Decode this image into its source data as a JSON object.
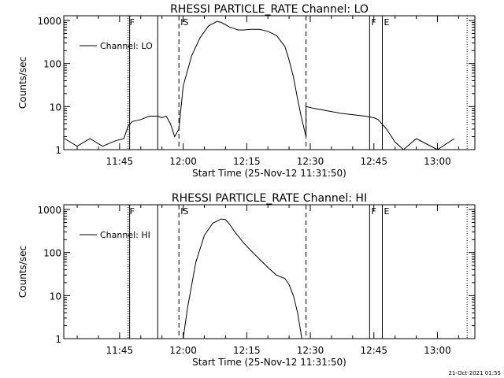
{
  "chart_data": [
    {
      "type": "line",
      "title": "RHESSI PARTICLE_RATE Channel: LO",
      "xlabel": "Start Time (25-Nov-12 11:31:50)",
      "ylabel": "Counts/sec",
      "yscale": "log",
      "ylim": [
        1,
        1000
      ],
      "y_ticks": [
        1,
        10,
        100,
        1000
      ],
      "y_tick_labels": [
        "1",
        "10",
        "100",
        "1000"
      ],
      "x_ticks": [
        "11:45",
        "12:00",
        "12:15",
        "12:30",
        "12:45",
        "13:00"
      ],
      "legend": "Channel: LO",
      "legend_position": "top-left",
      "markers": [
        {
          "label": "F",
          "time": "11:47",
          "style": "dotted"
        },
        {
          "label": "",
          "time": "11:47",
          "style": "solid"
        },
        {
          "label": "",
          "time": "11:54",
          "style": "solid"
        },
        {
          "label": "IS",
          "time": "11:59",
          "style": "dashed"
        },
        {
          "label": "",
          "time": "12:29",
          "style": "dashed"
        },
        {
          "label": "F",
          "time": "12:44",
          "style": "solid"
        },
        {
          "label": "E",
          "time": "12:47",
          "style": "solid"
        },
        {
          "label": "",
          "time": "13:07",
          "style": "dotted"
        }
      ],
      "series": [
        {
          "name": "Channel: LO",
          "x": [
            "11:32",
            "11:35",
            "11:38",
            "11:41",
            "11:44",
            "11:46",
            "11:47",
            "11:48",
            "11:50",
            "11:52",
            "11:54",
            "11:55",
            "11:56",
            "11:57",
            "11:58",
            "11:59",
            "12:00",
            "12:02",
            "12:04",
            "12:06",
            "12:08",
            "12:09",
            "12:10",
            "12:11",
            "12:12",
            "12:13",
            "12:14",
            "12:16",
            "12:18",
            "12:20",
            "12:22",
            "12:24",
            "12:25",
            "12:26",
            "12:27",
            "12:28",
            "12:29",
            "12:29",
            "12:31",
            "12:34",
            "12:37",
            "12:40",
            "12:43",
            "12:45",
            "12:46",
            "12:48",
            "12:50",
            "12:52",
            "12:55",
            "13:00",
            "13:04"
          ],
          "y": [
            1.8,
            1.2,
            1.8,
            1.2,
            1.6,
            1.8,
            3.5,
            4.5,
            5,
            6,
            6,
            5.5,
            6,
            4,
            2,
            3,
            30,
            150,
            400,
            750,
            950,
            900,
            800,
            700,
            650,
            600,
            600,
            620,
            620,
            560,
            450,
            250,
            120,
            50,
            15,
            5,
            2,
            10,
            9,
            8,
            7,
            6.5,
            6,
            5.5,
            5,
            3,
            1.5,
            1,
            1.8,
            1,
            1.8
          ]
        }
      ]
    },
    {
      "type": "line",
      "title": "RHESSI PARTICLE_RATE Channel: HI",
      "xlabel": "Start Time (25-Nov-12 11:31:50)",
      "ylabel": "Counts/sec",
      "yscale": "log",
      "ylim": [
        1,
        1000
      ],
      "y_ticks": [
        1,
        10,
        100,
        1000
      ],
      "y_tick_labels": [
        "1",
        "10",
        "100",
        "1000"
      ],
      "x_ticks": [
        "11:45",
        "12:00",
        "12:15",
        "12:30",
        "12:45",
        "13:00"
      ],
      "legend": "Channel: HI",
      "legend_position": "top-left",
      "markers": [
        {
          "label": "F",
          "time": "11:47",
          "style": "dotted"
        },
        {
          "label": "",
          "time": "11:47",
          "style": "solid"
        },
        {
          "label": "",
          "time": "11:54",
          "style": "solid"
        },
        {
          "label": "IS",
          "time": "11:59",
          "style": "dashed"
        },
        {
          "label": "",
          "time": "12:29",
          "style": "dashed"
        },
        {
          "label": "F",
          "time": "12:44",
          "style": "solid"
        },
        {
          "label": "E",
          "time": "12:47",
          "style": "solid"
        },
        {
          "label": "",
          "time": "13:07",
          "style": "dotted"
        }
      ],
      "series": [
        {
          "name": "Channel: HI",
          "x": [
            "12:00",
            "12:01",
            "12:03",
            "12:05",
            "12:07",
            "12:09",
            "12:10",
            "12:11",
            "12:12",
            "12:14",
            "12:16",
            "12:18",
            "12:20",
            "12:22",
            "12:24",
            "12:25",
            "12:26",
            "12:27",
            "12:28"
          ],
          "y": [
            1,
            5,
            60,
            250,
            480,
            600,
            580,
            450,
            320,
            180,
            110,
            70,
            45,
            30,
            25,
            18,
            10,
            4,
            1
          ]
        }
      ]
    }
  ],
  "datestamp": "21-Oct-2021 01:55"
}
